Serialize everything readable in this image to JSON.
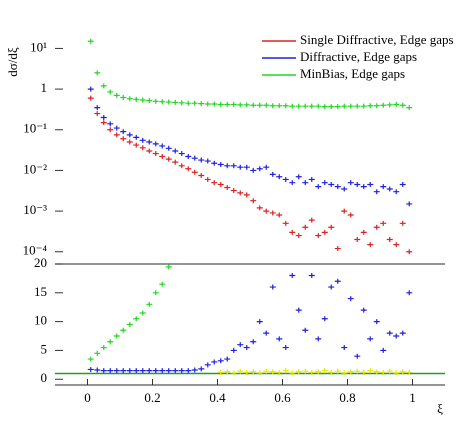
{
  "chart_data": [
    {
      "type": "scatter",
      "y_label": "dσ/dξ",
      "log_y": true,
      "xlim": [
        -0.1,
        1.1
      ],
      "ylim": [
        5e-05,
        50
      ],
      "yticks": [
        {
          "value": 10,
          "label": "10¹"
        },
        {
          "value": 1,
          "label": "1"
        },
        {
          "value": 0.1,
          "label": "10⁻¹"
        },
        {
          "value": 0.01,
          "label": "10⁻²"
        },
        {
          "value": 0.001,
          "label": "10⁻³"
        },
        {
          "value": 0.0001,
          "label": "10⁻⁴"
        }
      ],
      "legend": "upper right",
      "x": [
        0.01,
        0.03,
        0.05,
        0.07,
        0.09,
        0.11,
        0.13,
        0.15,
        0.17,
        0.19,
        0.21,
        0.23,
        0.25,
        0.27,
        0.29,
        0.31,
        0.33,
        0.35,
        0.37,
        0.39,
        0.41,
        0.43,
        0.45,
        0.47,
        0.49,
        0.51,
        0.53,
        0.55,
        0.57,
        0.59,
        0.61,
        0.63,
        0.65,
        0.67,
        0.69,
        0.71,
        0.73,
        0.75,
        0.77,
        0.79,
        0.81,
        0.83,
        0.85,
        0.87,
        0.89,
        0.91,
        0.93,
        0.95,
        0.97,
        0.99
      ],
      "series": [
        {
          "name": "Single Diffractive, Edge gaps",
          "color": "#e02020",
          "values": [
            0.6,
            0.25,
            0.15,
            0.1,
            0.075,
            0.06,
            0.05,
            0.042,
            0.036,
            0.03,
            0.026,
            0.022,
            0.019,
            0.016,
            0.013,
            0.011,
            0.009,
            0.0075,
            0.006,
            0.005,
            0.0045,
            0.0038,
            0.0032,
            0.0028,
            0.0025,
            0.0018,
            0.0012,
            0.001,
            0.0009,
            0.0008,
            0.0005,
            0.0003,
            0.00025,
            0.0004,
            0.0006,
            0.00025,
            0.0003,
            0.0004,
            0.00012,
            0.001,
            0.0008,
            0.0002,
            0.0003,
            0.00015,
            0.0004,
            0.0005,
            0.0002,
            0.00015,
            0.0005,
            0.0001
          ]
        },
        {
          "name": "Diffractive, Edge gaps",
          "color": "#2020e0",
          "values": [
            1.0,
            0.35,
            0.2,
            0.14,
            0.11,
            0.09,
            0.075,
            0.065,
            0.055,
            0.05,
            0.045,
            0.04,
            0.035,
            0.03,
            0.026,
            0.022,
            0.02,
            0.018,
            0.017,
            0.015,
            0.014,
            0.013,
            0.013,
            0.012,
            0.012,
            0.01,
            0.011,
            0.012,
            0.008,
            0.007,
            0.006,
            0.005,
            0.007,
            0.005,
            0.006,
            0.004,
            0.005,
            0.0045,
            0.004,
            0.0035,
            0.005,
            0.0045,
            0.004,
            0.0045,
            0.003,
            0.004,
            0.0035,
            0.003,
            0.0045,
            0.0015
          ]
        },
        {
          "name": "MinBias, Edge gaps",
          "color": "#20d820",
          "values": [
            15,
            2.5,
            1.2,
            0.85,
            0.7,
            0.62,
            0.58,
            0.56,
            0.54,
            0.52,
            0.5,
            0.49,
            0.48,
            0.47,
            0.46,
            0.45,
            0.45,
            0.44,
            0.43,
            0.43,
            0.42,
            0.42,
            0.42,
            0.41,
            0.41,
            0.4,
            0.4,
            0.4,
            0.39,
            0.39,
            0.39,
            0.38,
            0.38,
            0.38,
            0.38,
            0.38,
            0.37,
            0.37,
            0.37,
            0.38,
            0.38,
            0.38,
            0.38,
            0.39,
            0.39,
            0.4,
            0.41,
            0.42,
            0.4,
            0.35
          ]
        }
      ]
    },
    {
      "type": "scatter",
      "x_label": "ξ",
      "xlim": [
        -0.1,
        1.1
      ],
      "ylim": [
        -1,
        20
      ],
      "xticks": [
        0,
        0.2,
        0.4,
        0.6,
        0.8,
        1
      ],
      "yticks": [
        0,
        5,
        10,
        15,
        20
      ],
      "reference": 1,
      "reference_color": "#20a020",
      "x": [
        0.01,
        0.03,
        0.05,
        0.07,
        0.09,
        0.11,
        0.13,
        0.15,
        0.17,
        0.19,
        0.21,
        0.23,
        0.25,
        0.27,
        0.29,
        0.31,
        0.33,
        0.35,
        0.37,
        0.39,
        0.41,
        0.43,
        0.45,
        0.47,
        0.49,
        0.51,
        0.53,
        0.55,
        0.57,
        0.59,
        0.61,
        0.63,
        0.65,
        0.67,
        0.69,
        0.71,
        0.73,
        0.75,
        0.77,
        0.79,
        0.81,
        0.83,
        0.85,
        0.87,
        0.89,
        0.91,
        0.93,
        0.95,
        0.97,
        0.99
      ],
      "series": [
        {
          "color": "#20d820",
          "values": [
            3.5,
            4.5,
            5.5,
            6.5,
            7.5,
            8.5,
            9.5,
            10.5,
            11.5,
            13,
            15,
            16.5,
            19.5,
            null,
            null,
            null,
            null,
            null,
            null,
            null,
            null,
            null,
            null,
            null,
            null,
            null,
            null,
            null,
            null,
            null,
            null,
            null,
            null,
            null,
            null,
            null,
            null,
            null,
            null,
            null,
            null,
            null,
            null,
            null,
            null,
            null,
            null,
            null,
            null,
            null
          ]
        },
        {
          "color": "#2020e0",
          "values": [
            1.7,
            1.6,
            1.5,
            1.5,
            1.5,
            1.5,
            1.5,
            1.5,
            1.5,
            1.5,
            1.5,
            1.5,
            1.5,
            1.5,
            1.5,
            1.5,
            1.6,
            1.8,
            2.5,
            3,
            3.2,
            3.5,
            5,
            6,
            5.5,
            6.5,
            10,
            8,
            16,
            7,
            5.5,
            18,
            12,
            8.5,
            18,
            7,
            10.5,
            16,
            17,
            5.5,
            14,
            4,
            12,
            7,
            10,
            5,
            8,
            7.5,
            8,
            15
          ]
        },
        {
          "color": "#e8e800",
          "values": [
            null,
            null,
            null,
            null,
            null,
            null,
            null,
            null,
            null,
            null,
            null,
            null,
            null,
            null,
            null,
            null,
            null,
            null,
            null,
            null,
            1.2,
            1.3,
            1.1,
            1.4,
            1.2,
            1.3,
            1.1,
            1.4,
            1.3,
            1.2,
            1.5,
            1.1,
            1.3,
            1.4,
            1.2,
            1.3,
            1.5,
            1.2,
            1.4,
            1.1,
            1.3,
            1.4,
            1.2,
            1.5,
            1.3,
            1.2,
            1.4,
            1.1,
            1.3,
            1.2
          ]
        }
      ]
    }
  ]
}
